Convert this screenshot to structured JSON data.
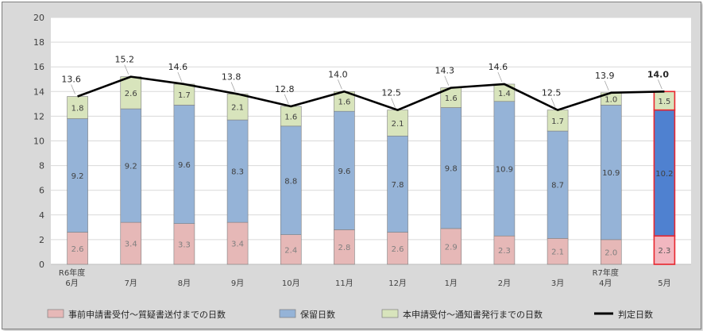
{
  "chart_data": {
    "type": "bar",
    "stacked": true,
    "categories": [
      [
        "R6年度",
        "6月"
      ],
      [
        "7月"
      ],
      [
        "8月"
      ],
      [
        "9月"
      ],
      [
        "10月"
      ],
      [
        "11月"
      ],
      [
        "12月"
      ],
      [
        "1月"
      ],
      [
        "2月"
      ],
      [
        "3月"
      ],
      [
        "R7年度",
        "4月"
      ],
      [
        "5月"
      ]
    ],
    "series": [
      {
        "name": "事前申請書受付～質疑書送付までの日数",
        "color": "#e6b8b7",
        "values": [
          2.6,
          3.4,
          3.3,
          3.4,
          2.4,
          2.8,
          2.6,
          2.9,
          2.3,
          2.1,
          2.0,
          2.3
        ]
      },
      {
        "name": "保留日数",
        "color": "#95b3d7",
        "values": [
          9.2,
          9.2,
          9.6,
          8.3,
          8.8,
          9.6,
          7.8,
          9.8,
          10.9,
          8.7,
          10.9,
          10.2
        ]
      },
      {
        "name": "本申請受付～通知書発行までの日数",
        "color": "#d8e4bc",
        "values": [
          1.8,
          2.6,
          1.7,
          2.1,
          1.6,
          1.6,
          2.1,
          1.6,
          1.4,
          1.7,
          1.0,
          1.5
        ]
      }
    ],
    "line": {
      "name": "判定日数",
      "color": "#000000",
      "values": [
        13.6,
        15.2,
        14.6,
        13.8,
        12.8,
        14.0,
        12.5,
        14.3,
        14.6,
        12.5,
        13.9,
        14.0
      ]
    },
    "segment_labels": [
      [
        "2.6",
        "3.4",
        "3.3",
        "3.4",
        "2.4",
        "2.8",
        "2.6",
        "2.9",
        "2.3",
        "2.1",
        "2.0",
        "2.3"
      ],
      [
        "9.2",
        "9.2",
        "9.6",
        "8.3",
        "8.8",
        "9.6",
        "7.8",
        "9.8",
        "10.9",
        "8.7",
        "10.9",
        "10.2"
      ],
      [
        "1.8",
        "2.6",
        "1.7",
        "2.1",
        "1.6",
        "1.6",
        "2.1",
        "1.6",
        "1.4",
        "1.7",
        "1.0",
        "1.5"
      ]
    ],
    "total_labels": [
      "13.6",
      "15.2",
      "14.6",
      "13.8",
      "12.8",
      "14.0",
      "12.5",
      "14.3",
      "14.6",
      "12.5",
      "13.9",
      "14.0"
    ],
    "highlight_index": 11,
    "highlight_border_color": "#e8262e",
    "highlight_colors": [
      "#f2b7c0",
      "#4f81d0",
      "#d8e4bc"
    ],
    "ylim": [
      0,
      20
    ],
    "yticks": [
      "0",
      "2",
      "4",
      "6",
      "8",
      "10",
      "12",
      "14",
      "16",
      "18",
      "20"
    ],
    "grid": true,
    "legend_position": "bottom",
    "title": "",
    "xlabel": "",
    "ylabel": ""
  }
}
